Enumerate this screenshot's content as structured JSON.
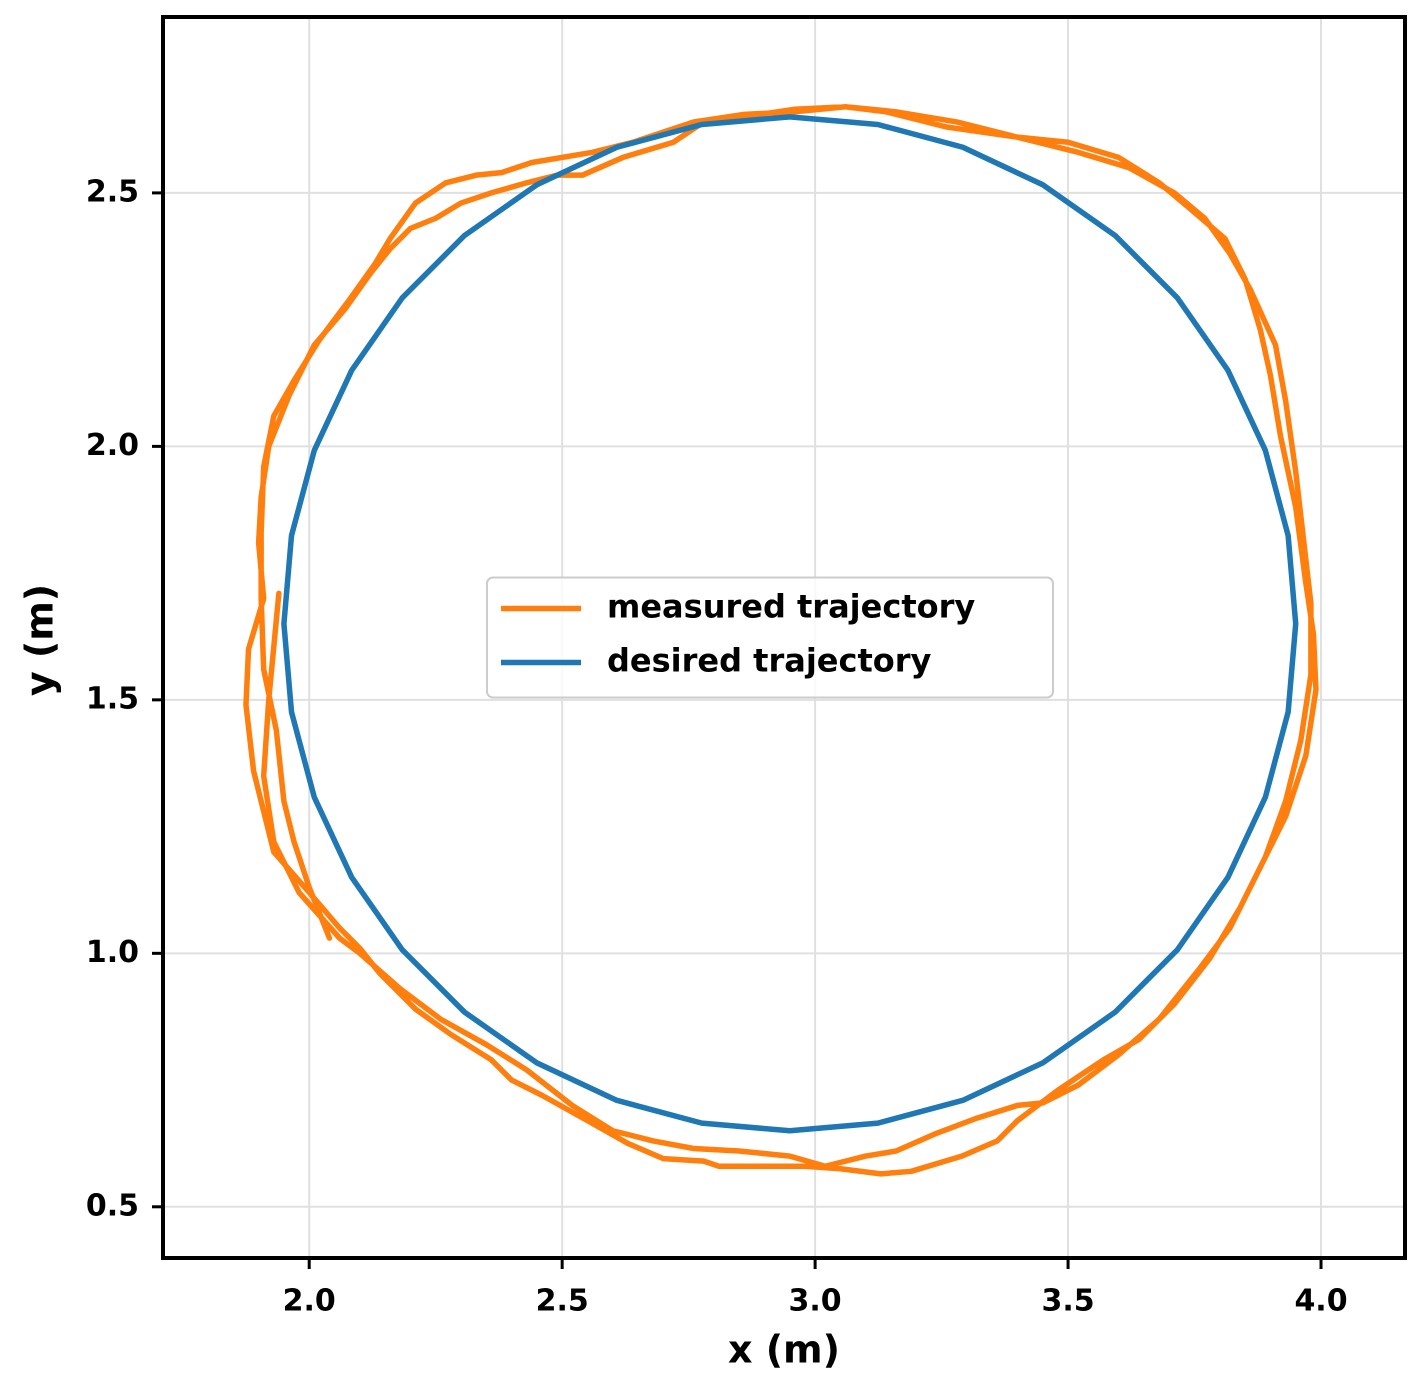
{
  "chart_data": {
    "type": "line",
    "x_label": "x (m)",
    "y_label": "y (m)",
    "xlim": [
      1.711,
      4.166
    ],
    "ylim": [
      0.399,
      2.847
    ],
    "xticks": [
      {
        "value": 2,
        "label": "2.0"
      },
      2.5,
      {
        "value": 3,
        "label": "3.0"
      },
      3.5,
      {
        "value": 4,
        "label": "4.0"
      }
    ],
    "yticks": [
      0.5,
      {
        "value": 1,
        "label": "1.0"
      },
      1.5,
      {
        "value": 2,
        "label": "2.0"
      },
      2.5
    ],
    "grid": true,
    "legend": "center",
    "series": [
      {
        "name": "measured trajectory",
        "color": "#ff7f0e",
        "x": [
          1.94,
          1.92,
          1.91,
          1.93,
          1.98,
          2.06,
          2.1,
          2.18,
          2.26,
          2.35,
          2.43,
          2.52,
          2.6,
          2.68,
          2.76,
          2.85,
          2.95,
          3.02,
          3.1,
          3.16,
          3.24,
          3.32,
          3.4,
          3.45,
          3.52,
          3.6,
          3.68,
          3.76,
          3.82,
          3.88,
          3.93,
          3.97,
          3.99,
          3.985,
          3.97,
          3.95,
          3.92,
          3.9,
          3.88,
          3.85,
          3.81,
          3.74,
          3.68,
          3.6,
          3.5,
          3.4,
          3.28,
          3.16,
          3.06,
          2.96,
          2.86,
          2.78,
          2.72,
          2.62,
          2.54,
          2.49,
          2.43,
          2.36,
          2.3,
          2.25,
          2.2,
          2.16,
          2.12,
          2.07,
          2.01,
          1.96,
          1.92,
          1.905,
          1.9,
          1.91,
          1.88,
          1.875,
          1.89,
          1.93,
          2.0,
          2.06,
          2.1,
          2.14,
          2.21,
          2.28,
          2.36,
          2.4,
          2.46,
          2.55,
          2.63,
          2.7,
          2.78,
          2.81,
          2.9,
          2.98,
          3.05,
          3.13,
          3.19,
          3.29,
          3.36,
          3.4,
          3.48,
          3.57,
          3.64,
          3.71,
          3.78,
          3.84,
          3.89,
          3.93,
          3.96,
          3.98,
          3.98,
          3.965,
          3.95,
          3.93,
          3.91,
          3.86,
          3.82,
          3.77,
          3.71,
          3.62,
          3.52,
          3.4,
          3.26,
          3.14,
          3.06,
          2.96,
          2.86,
          2.76,
          2.64,
          2.56,
          2.44,
          2.38,
          2.33,
          2.27,
          2.21,
          2.16,
          2.13,
          2.08,
          2.05,
          2.02,
          1.97,
          1.93,
          1.91,
          1.905,
          1.905,
          1.91,
          1.935,
          1.95,
          1.97,
          2.0,
          2.04
        ],
        "values": [
          1.71,
          1.5,
          1.35,
          1.22,
          1.12,
          1.03,
          1.0,
          0.93,
          0.87,
          0.82,
          0.77,
          0.7,
          0.65,
          0.63,
          0.615,
          0.61,
          0.6,
          0.58,
          0.6,
          0.61,
          0.645,
          0.675,
          0.7,
          0.705,
          0.74,
          0.8,
          0.87,
          0.97,
          1.05,
          1.17,
          1.27,
          1.39,
          1.52,
          1.63,
          1.73,
          1.88,
          2.02,
          2.14,
          2.23,
          2.33,
          2.41,
          2.47,
          2.52,
          2.57,
          2.6,
          2.61,
          2.64,
          2.66,
          2.67,
          2.665,
          2.65,
          2.64,
          2.6,
          2.57,
          2.535,
          2.535,
          2.52,
          2.5,
          2.48,
          2.45,
          2.43,
          2.39,
          2.34,
          2.27,
          2.2,
          2.1,
          2.0,
          1.9,
          1.81,
          1.7,
          1.6,
          1.49,
          1.36,
          1.2,
          1.12,
          1.05,
          1.01,
          0.96,
          0.89,
          0.84,
          0.79,
          0.75,
          0.72,
          0.67,
          0.625,
          0.595,
          0.59,
          0.58,
          0.58,
          0.58,
          0.575,
          0.565,
          0.57,
          0.6,
          0.63,
          0.67,
          0.73,
          0.79,
          0.83,
          0.9,
          0.99,
          1.09,
          1.19,
          1.3,
          1.42,
          1.55,
          1.69,
          1.82,
          1.95,
          2.09,
          2.2,
          2.31,
          2.38,
          2.45,
          2.5,
          2.55,
          2.58,
          2.61,
          2.63,
          2.66,
          2.67,
          2.66,
          2.655,
          2.64,
          2.6,
          2.58,
          2.56,
          2.54,
          2.535,
          2.52,
          2.48,
          2.41,
          2.36,
          2.29,
          2.25,
          2.21,
          2.13,
          2.06,
          1.96,
          1.83,
          1.7,
          1.56,
          1.44,
          1.3,
          1.22,
          1.13,
          1.03
        ]
      },
      {
        "name": "desired trajectory",
        "color": "#1f77b4",
        "x": [
          3.95,
          3.935,
          3.89,
          3.816,
          3.716,
          3.593,
          3.45,
          3.292,
          3.124,
          2.95,
          2.776,
          2.608,
          2.45,
          2.307,
          2.184,
          2.084,
          2.01,
          1.965,
          1.95,
          1.965,
          2.01,
          2.084,
          2.184,
          2.307,
          2.45,
          2.608,
          2.776,
          2.95,
          3.124,
          3.292,
          3.45,
          3.593,
          3.716,
          3.816,
          3.89,
          3.935,
          3.95
        ],
        "values": [
          1.65,
          1.824,
          1.992,
          2.15,
          2.293,
          2.416,
          2.516,
          2.59,
          2.635,
          2.65,
          2.635,
          2.59,
          2.516,
          2.416,
          2.293,
          2.15,
          1.992,
          1.824,
          1.65,
          1.476,
          1.308,
          1.15,
          1.007,
          0.884,
          0.784,
          0.71,
          0.665,
          0.65,
          0.665,
          0.71,
          0.784,
          0.884,
          1.007,
          1.15,
          1.308,
          1.476,
          1.65
        ]
      }
    ]
  }
}
